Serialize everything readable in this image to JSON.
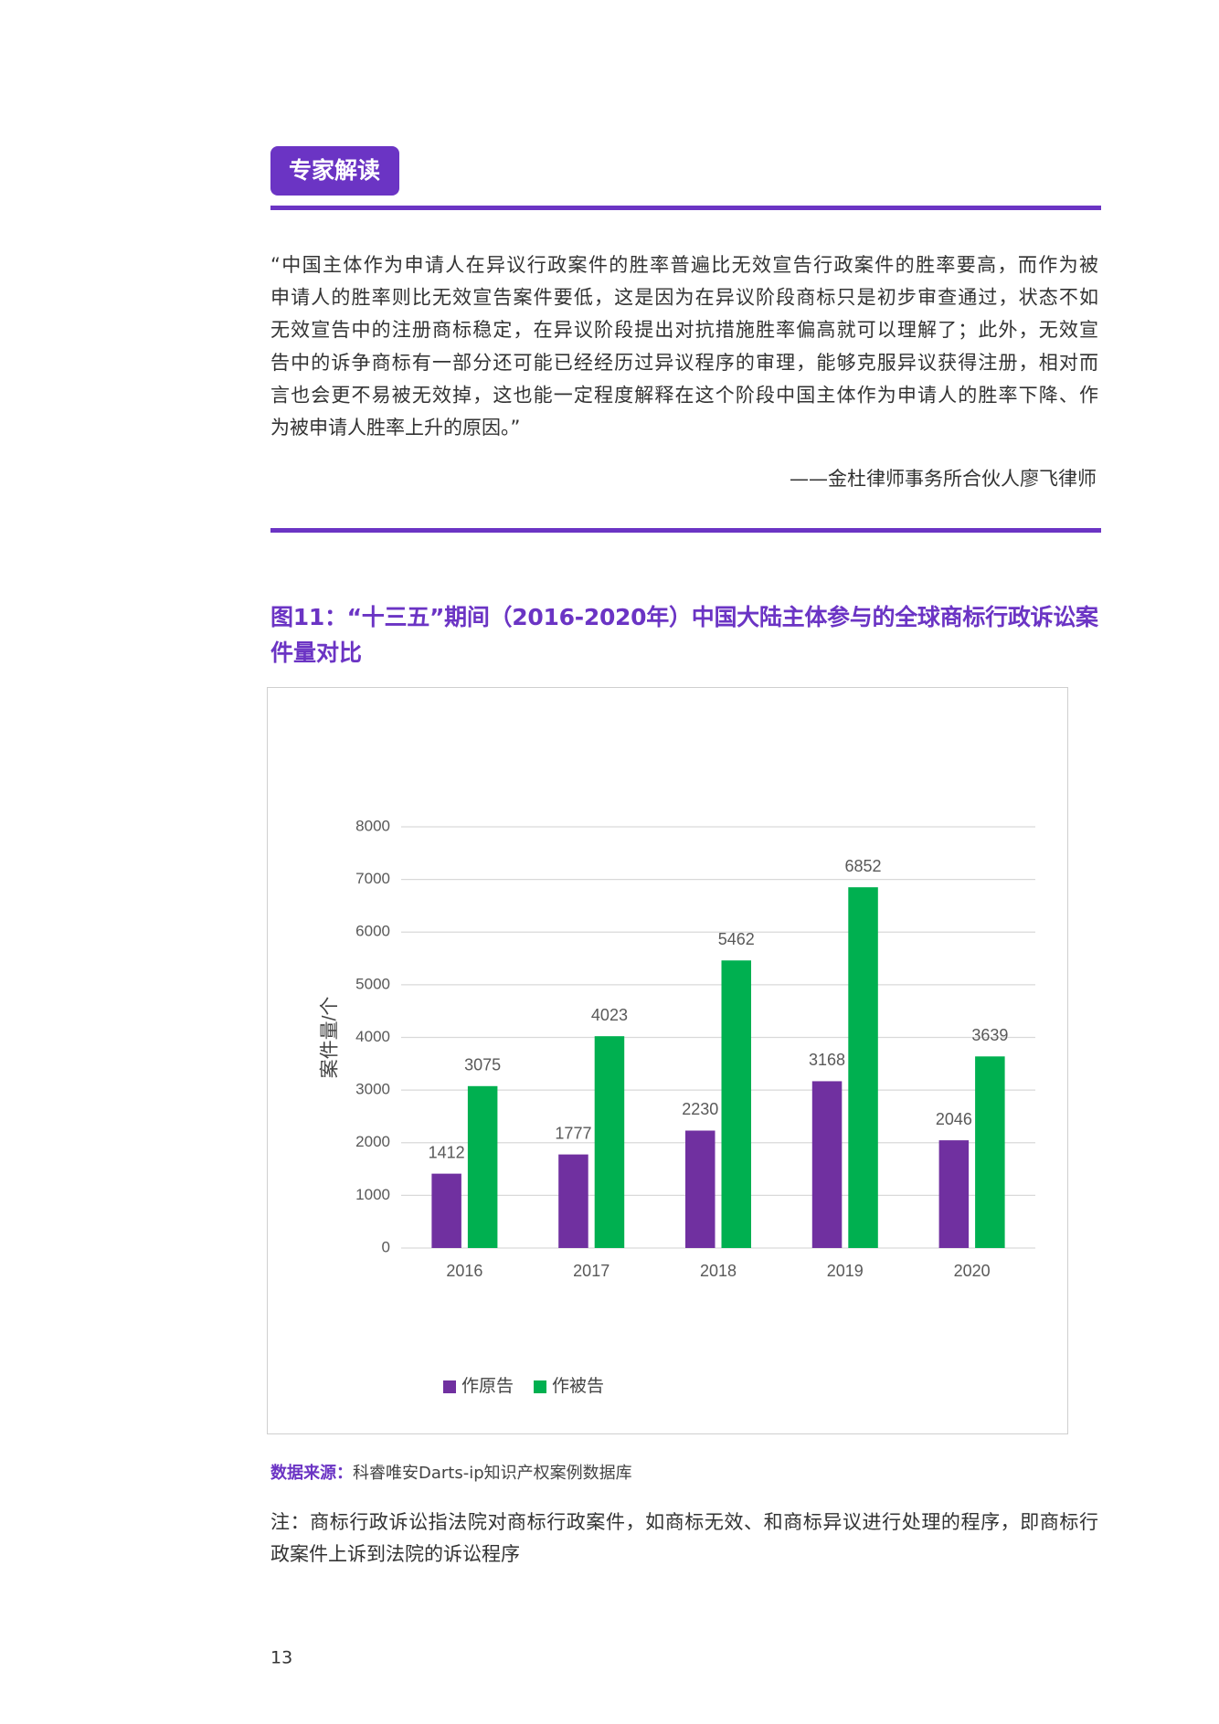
{
  "badge": "专家解读",
  "quote": {
    "lines": [
      "“中国主体作为申请人在异议行政案件的胜率普遍比无效宣告行政案件的胜率要高，而作为被",
      "申请人的胜率则比无效宣告案件要低，这是因为在异议阶段商标只是初步审查通过，状态不如",
      "无效宣告中的注册商标稳定，在异议阶段提出对抗措施胜率偏高就可以理解了；此外，无效宣",
      "告中的诉争商标有一部分还可能已经经历过异议程序的审理，能够克服异议获得注册，相对而",
      "言也会更不易被无效掉，这也能一定程度解释在这个阶段中国主体作为申请人的胜率下降、作",
      "为被申请人胜率上升的原因。”"
    ],
    "attribution": "——金杜律师事务所合伙人廖飞律师"
  },
  "figure_title": {
    "lines": [
      "图11：“十三五”期间（2016-2020年）中国大陆主体参与的全球商标行政诉讼案",
      "件量对比"
    ]
  },
  "chart_data": {
    "type": "bar",
    "y_label": "案件量/个",
    "categories": [
      "2016",
      "2017",
      "2018",
      "2019",
      "2020"
    ],
    "series": [
      {
        "name": "作原告",
        "color": "#7030a0",
        "values": [
          1412,
          1777,
          2230,
          3168,
          2046
        ]
      },
      {
        "name": "作被告",
        "color": "#00b050",
        "values": [
          3075,
          4023,
          5462,
          6852,
          3639
        ]
      }
    ],
    "ylim": [
      0,
      8000
    ],
    "yticks": [
      0,
      1000,
      2000,
      3000,
      4000,
      5000,
      6000,
      7000,
      8000
    ],
    "grid": true,
    "legend": "bottom"
  },
  "source": {
    "label": "数据来源：",
    "text": "科睿唯安Darts-ip知识产权案例数据库"
  },
  "note": {
    "lines": [
      "注：商标行政诉讼指法院对商标行政案件，如商标无效、和商标异议进行处理的程序，即商标行",
      "政案件上诉到法院的诉讼程序"
    ]
  },
  "page_number": "13"
}
